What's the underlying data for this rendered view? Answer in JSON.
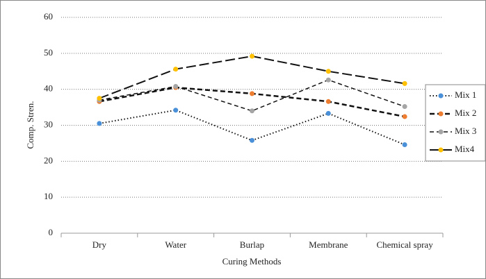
{
  "chart_data": {
    "type": "line",
    "x_label": "Curing Methods",
    "y_label": "Comp. Stren.",
    "categories": [
      "Dry",
      "Water",
      "Burlap",
      "Membrane",
      "Chemical spray"
    ],
    "series": [
      {
        "name": "Mix 1",
        "color": "#4a90d9",
        "line_style": "dotted",
        "values": [
          30.5,
          34.2,
          25.8,
          33.3,
          24.6
        ]
      },
      {
        "name": "Mix 2",
        "color": "#ed7d31",
        "line_style": "dashed",
        "values": [
          36.6,
          40.5,
          38.8,
          36.6,
          32.4
        ]
      },
      {
        "name": "Mix 3",
        "color": "#a5a5a5",
        "line_style": "dashed-thin",
        "values": [
          37,
          40.8,
          34,
          42.6,
          35.2
        ]
      },
      {
        "name": "Mix4",
        "color": "#ffc000",
        "line_style": "long-dash",
        "values": [
          37.5,
          45.6,
          49.2,
          45,
          41.6
        ]
      }
    ],
    "ylim": [
      0,
      60
    ],
    "yticks": [
      0,
      10,
      20,
      30,
      40,
      50,
      60
    ],
    "grid": true,
    "legend": "right"
  }
}
